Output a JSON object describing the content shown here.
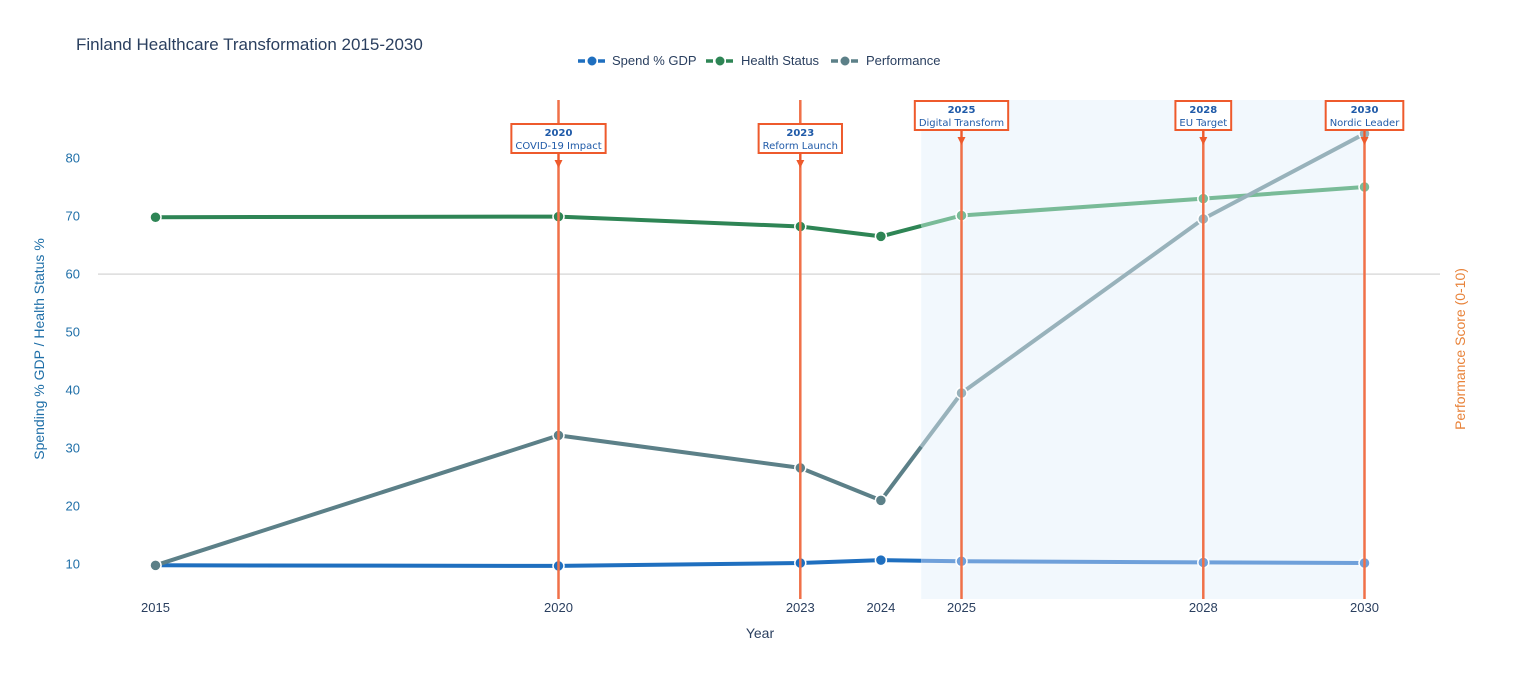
{
  "chart_data": {
    "type": "line",
    "title": "Finland Healthcare Transformation 2015-2030",
    "xlabel": "Year",
    "ylabel": "Spending % GDP / Health Status %",
    "y2label": "Performance Score (0-10)",
    "x": [
      2015,
      2020,
      2023,
      2024,
      2025,
      2028,
      2030
    ],
    "x_ticks": [
      "2015",
      "2020",
      "2023",
      "2024",
      "2025",
      "2028",
      "2030"
    ],
    "y_ticks": [
      "10",
      "20",
      "30",
      "40",
      "50",
      "60",
      "70",
      "80"
    ],
    "ylim": [
      4,
      90
    ],
    "projection_start": 2024.5,
    "grid": false,
    "reference_line_y": 60,
    "legend_position": "top-center",
    "series": [
      {
        "name": "Spend % GDP",
        "color": "#1f6fbf",
        "projected_color": "#6fa0da",
        "values": [
          9.8,
          9.7,
          10.2,
          10.7,
          10.5,
          10.3,
          10.2
        ]
      },
      {
        "name": "Health Status",
        "color": "#2e8555",
        "projected_color": "#79bb98",
        "values": [
          69.8,
          69.9,
          68.2,
          66.5,
          70.1,
          73.0,
          75.0
        ]
      },
      {
        "name": "Performance",
        "color": "#5c8088",
        "projected_color": "#98b2bb",
        "values": [
          9.8,
          32.2,
          26.6,
          21.0,
          39.5,
          69.5,
          84.2
        ]
      }
    ],
    "annotations": [
      {
        "year": "2020",
        "label": "COVID-19 Impact",
        "x": 2020
      },
      {
        "year": "2023",
        "label": "Reform Launch",
        "x": 2023
      },
      {
        "year": "2025",
        "label": "Digital Transform",
        "x": 2025
      },
      {
        "year": "2028",
        "label": "EU Target",
        "x": 2028
      },
      {
        "year": "2030",
        "label": "Nordic Leader",
        "x": 2030
      }
    ]
  },
  "colors": {
    "event_line": "#f07048",
    "event_box_border": "#ee5a2c",
    "projection_band": "#f2f8fd",
    "reference_line": "#dcdcdc"
  }
}
